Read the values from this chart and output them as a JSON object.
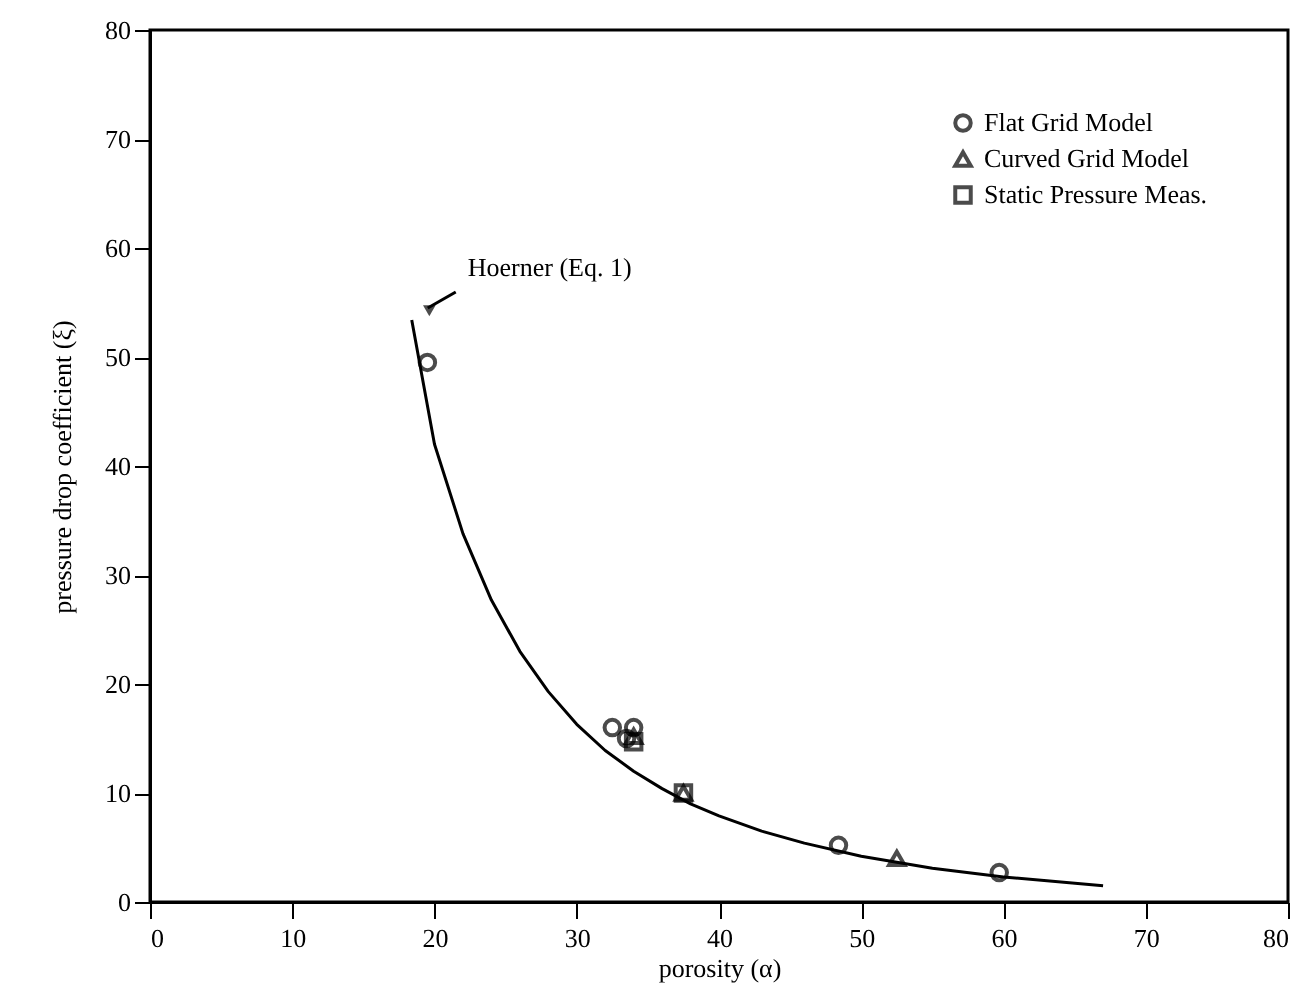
{
  "chart_data": {
    "type": "scatter",
    "xlabel": "porosity (α)",
    "ylabel": "pressure drop coefficient (ξ)",
    "xlim": [
      0,
      80
    ],
    "ylim": [
      0,
      80
    ],
    "xticks": [
      0,
      10,
      20,
      30,
      40,
      50,
      60,
      70,
      80
    ],
    "yticks": [
      0,
      10,
      20,
      30,
      40,
      50,
      60,
      70,
      80
    ],
    "grid": false,
    "legend": "top right",
    "annotations": [
      {
        "text": "Hoerner (Eq. 1)",
        "x": 18.4,
        "y": 53.4
      }
    ],
    "series": [
      {
        "type": "line",
        "color": "#000000",
        "marker": "none",
        "x": [
          18.4,
          20,
          22,
          24,
          26,
          28,
          30,
          32,
          34,
          36,
          38,
          40,
          43,
          46,
          50,
          55,
          60,
          67
        ],
        "values": [
          53.4,
          42.0,
          33.8,
          27.7,
          23.0,
          19.3,
          16.3,
          13.9,
          12.0,
          10.4,
          9.0,
          7.9,
          6.5,
          5.4,
          4.2,
          3.1,
          2.3,
          1.5
        ]
      },
      {
        "name": "Flat Grid Model",
        "color": "#000000",
        "marker": "circle",
        "x": [
          19.5,
          32.5,
          33.5,
          34,
          48.4,
          59.7
        ],
        "values": [
          49.5,
          16,
          15,
          16,
          5.2,
          2.7
        ]
      },
      {
        "name": "Curved Grid Model",
        "color": "#000000",
        "marker": "triangle",
        "x": [
          34,
          37.5,
          52.5
        ],
        "values": [
          15.2,
          10,
          4
        ]
      },
      {
        "name": "Static Pressure Meas.",
        "color": "#000000",
        "marker": "square",
        "x": [
          34,
          37.5
        ],
        "values": [
          14.7,
          10
        ]
      }
    ]
  }
}
